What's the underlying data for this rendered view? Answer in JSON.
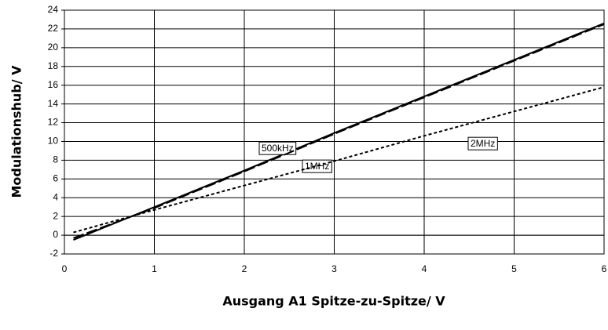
{
  "chart_data": {
    "type": "line",
    "xlabel": "Ausgang A1 Spitze-zu-Spitze/ V",
    "ylabel": "Modulationshub/ V",
    "x": [
      0.1,
      1,
      2,
      3,
      4,
      5,
      6
    ],
    "series": [
      {
        "name": "500kHz",
        "color": "#000000",
        "dash": "solid",
        "values": [
          -0.5,
          3.0,
          6.9,
          10.9,
          14.8,
          18.7,
          22.6
        ]
      },
      {
        "name": "1MHz",
        "color": "#000000",
        "dash": "long",
        "values": [
          -0.3,
          2.9,
          6.8,
          10.8,
          14.7,
          18.6,
          22.5
        ]
      },
      {
        "name": "2MHz",
        "color": "#000000",
        "dash": "short",
        "values": [
          0.3,
          2.7,
          5.3,
          7.9,
          10.6,
          13.2,
          15.8
        ]
      }
    ],
    "xlim": [
      0,
      6
    ],
    "xticks": [
      0,
      1,
      2,
      3,
      4,
      5,
      6
    ],
    "ylim": [
      -2,
      24
    ],
    "yticks": [
      -2,
      0,
      2,
      4,
      6,
      8,
      10,
      12,
      14,
      16,
      18,
      20,
      22,
      24
    ],
    "grid": true
  }
}
